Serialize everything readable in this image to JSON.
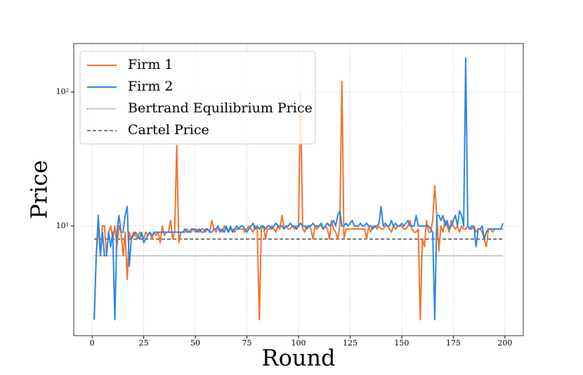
{
  "chart_data": {
    "type": "line",
    "xlabel": "Round",
    "ylabel": "Price",
    "yscale": "log",
    "grid": true,
    "legend": "upper left",
    "x": [
      1,
      2,
      3,
      4,
      5,
      6,
      7,
      8,
      9,
      10,
      11,
      12,
      13,
      14,
      15,
      16,
      17,
      18,
      19,
      20,
      21,
      22,
      23,
      24,
      25,
      26,
      27,
      28,
      29,
      30,
      31,
      32,
      33,
      34,
      35,
      36,
      37,
      38,
      39,
      40,
      41,
      42,
      43,
      44,
      45,
      46,
      47,
      48,
      49,
      50,
      51,
      52,
      53,
      54,
      55,
      56,
      57,
      58,
      59,
      60,
      61,
      62,
      63,
      64,
      65,
      66,
      67,
      68,
      69,
      70,
      71,
      72,
      73,
      74,
      75,
      76,
      77,
      78,
      79,
      80,
      81,
      82,
      83,
      84,
      85,
      86,
      87,
      88,
      89,
      90,
      91,
      92,
      93,
      94,
      95,
      96,
      97,
      98,
      99,
      100,
      101,
      102,
      103,
      104,
      105,
      106,
      107,
      108,
      109,
      110,
      111,
      112,
      113,
      114,
      115,
      116,
      117,
      118,
      119,
      120,
      121,
      122,
      123,
      124,
      125,
      126,
      127,
      128,
      129,
      130,
      131,
      132,
      133,
      134,
      135,
      136,
      137,
      138,
      139,
      140,
      141,
      142,
      143,
      144,
      145,
      146,
      147,
      148,
      149,
      150,
      151,
      152,
      153,
      154,
      155,
      156,
      157,
      158,
      159,
      160,
      161,
      162,
      163,
      164,
      165,
      166,
      167,
      168,
      169,
      170,
      171,
      172,
      173,
      174,
      175,
      176,
      177,
      178,
      179,
      180,
      181,
      182,
      183,
      184,
      185,
      186,
      187,
      188,
      189,
      190,
      191,
      192,
      193,
      194,
      195,
      196,
      197,
      198,
      199
    ],
    "series": [
      {
        "name": "Firm 1",
        "color": "#f4722b",
        "values": [
          2,
          6,
          10,
          6,
          10,
          10,
          6,
          9,
          10,
          8,
          10,
          7,
          10,
          9,
          6,
          9,
          4,
          9,
          8,
          9,
          8.5,
          8,
          9,
          8.5,
          8,
          9,
          8.5,
          9,
          8,
          9,
          8.5,
          9,
          7.5,
          10,
          8.5,
          9,
          9,
          11,
          8,
          9,
          40,
          7.5,
          9,
          9,
          9,
          9.5,
          9,
          9,
          9.5,
          9,
          9.5,
          9,
          9.5,
          9.5,
          9,
          9.5,
          9,
          11,
          9.5,
          9,
          9.5,
          9.5,
          9,
          10,
          9.5,
          9,
          9.5,
          9.5,
          9,
          9.5,
          9.5,
          9.5,
          9.5,
          9,
          9.5,
          10,
          9.5,
          9,
          10,
          9.5,
          2,
          9.5,
          10,
          8,
          9.5,
          9.5,
          10,
          9.5,
          9,
          10,
          9.5,
          12,
          9.5,
          10,
          9.5,
          9.5,
          10,
          9.5,
          10,
          10,
          100,
          9.5,
          9,
          10,
          10,
          9.5,
          8,
          10,
          9.5,
          10,
          10,
          9.5,
          10,
          9.5,
          8,
          11,
          9.5,
          9,
          8,
          10,
          120,
          8,
          9.5,
          9.5,
          9.5,
          9.5,
          9.5,
          9.5,
          9.5,
          9.5,
          9.5,
          9.5,
          8,
          10,
          9,
          10,
          10,
          9.5,
          10,
          9.5,
          9.5,
          10,
          10,
          9.5,
          9,
          10,
          9.5,
          10,
          10,
          10,
          9.5,
          9.5,
          10,
          11,
          9.5,
          9,
          9,
          9.5,
          2,
          8,
          7,
          11,
          9,
          9,
          11,
          20,
          12,
          6.5,
          10,
          9,
          11,
          10,
          9,
          11,
          10,
          9.5,
          10,
          9,
          10,
          9.5,
          9.5,
          10,
          9.5,
          9.5,
          10,
          9,
          9.5,
          9.5,
          9,
          8,
          7,
          9.5,
          9.5,
          9,
          9.5,
          9.5,
          9.5,
          9.5,
          9.5
        ]
      },
      {
        "name": "Firm 2",
        "color": "#2b86e6",
        "values": [
          2,
          6,
          12,
          6,
          9,
          6,
          6,
          9,
          7,
          9,
          2,
          9,
          12,
          9,
          9,
          12,
          14,
          5,
          8,
          8.5,
          9,
          8.5,
          8,
          9,
          7.5,
          8,
          8.5,
          9,
          8.5,
          9,
          9,
          9,
          9,
          9,
          9,
          9,
          9,
          9,
          9,
          9,
          9,
          9,
          9,
          9,
          9.5,
          9,
          9,
          9.5,
          9.5,
          9.5,
          9,
          9.5,
          9,
          9,
          9.5,
          9.5,
          9,
          9,
          9.5,
          9.5,
          10,
          9,
          9.5,
          9,
          10,
          9,
          10,
          9,
          9.5,
          10,
          9.5,
          10,
          10,
          9.5,
          9,
          9.5,
          10,
          10.5,
          9.5,
          10,
          9.5,
          10,
          10,
          9.5,
          10,
          10,
          9.5,
          10,
          10.5,
          10,
          10,
          10,
          9.5,
          10,
          10,
          10.5,
          10,
          10,
          9.5,
          10,
          10.5,
          10,
          10,
          9.5,
          10,
          10,
          10.5,
          10,
          10,
          10,
          10.5,
          9.5,
          10,
          10.5,
          10,
          10.5,
          11,
          10,
          12,
          13,
          10,
          10,
          10.5,
          10,
          10.5,
          11,
          10,
          10,
          10,
          10.5,
          10,
          10,
          10.5,
          10,
          10,
          9.5,
          10,
          10,
          10.5,
          14,
          10,
          10.5,
          10,
          10,
          11,
          10,
          10.5,
          10,
          10,
          10.5,
          10,
          10.5,
          11,
          10,
          10,
          10,
          12,
          10,
          10,
          10,
          10,
          10,
          10,
          9.5,
          9,
          2,
          12,
          12,
          11,
          12,
          10,
          11,
          9.5,
          10,
          11,
          12,
          10,
          13,
          12,
          10,
          180,
          10,
          9.5,
          10,
          10,
          7,
          9.5,
          9.5,
          10,
          8,
          9,
          9.5,
          9.5,
          9.5,
          9.5,
          9.5,
          9.5,
          9.5,
          10.5
        ]
      }
    ],
    "reference_lines": [
      {
        "name": "Bertrand Equilibrium Price",
        "value": 6,
        "style": "dotted",
        "color": "#000000"
      },
      {
        "name": "Cartel Price",
        "value": 8,
        "style": "dashed",
        "color": "#000000"
      }
    ],
    "xlim": [
      -8.9,
      208.9
    ],
    "ylim": [
      1.52,
      230
    ],
    "xticks": [
      0,
      25,
      50,
      75,
      100,
      125,
      150,
      175,
      200
    ],
    "yticks": [
      {
        "value": 10,
        "label": "10¹"
      },
      {
        "value": 100,
        "label": "10²"
      }
    ]
  }
}
